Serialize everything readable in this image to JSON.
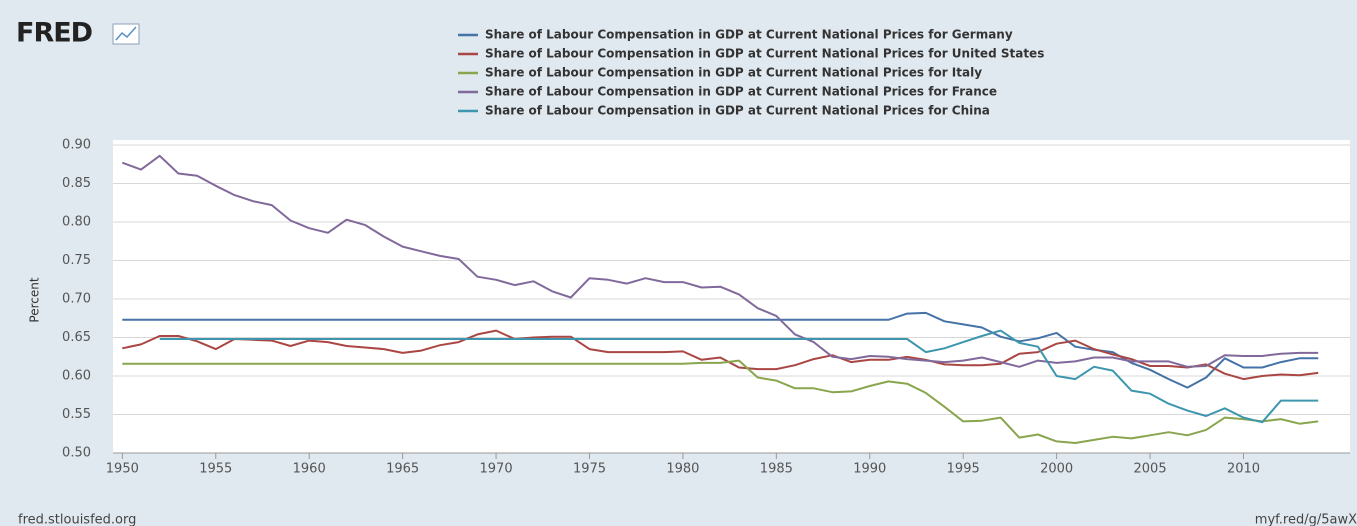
{
  "chart_data": {
    "type": "line",
    "logo": "FRED",
    "y_label": "Percent",
    "source": "fred.stlouisfed.org",
    "short_url": "myf.red/g/5awX",
    "legend_position": "top",
    "grid": true,
    "x": [
      1950,
      1951,
      1952,
      1953,
      1954,
      1955,
      1956,
      1957,
      1958,
      1959,
      1960,
      1961,
      1962,
      1963,
      1964,
      1965,
      1966,
      1967,
      1968,
      1969,
      1970,
      1971,
      1972,
      1973,
      1974,
      1975,
      1976,
      1977,
      1978,
      1979,
      1980,
      1981,
      1982,
      1983,
      1984,
      1985,
      1986,
      1987,
      1988,
      1989,
      1990,
      1991,
      1992,
      1993,
      1994,
      1995,
      1996,
      1997,
      1998,
      1999,
      2000,
      2001,
      2002,
      2003,
      2004,
      2005,
      2006,
      2007,
      2008,
      2009,
      2010,
      2011,
      2012,
      2013,
      2014
    ],
    "xlim": [
      1949.5,
      2015.7
    ],
    "xticks": [
      1950,
      1955,
      1960,
      1965,
      1970,
      1975,
      1980,
      1985,
      1990,
      1995,
      2000,
      2005,
      2010
    ],
    "ylim": [
      0.5,
      0.9
    ],
    "yticks": [
      {
        "value": 0.5,
        "label": "0.50"
      },
      0.55,
      {
        "value": 0.6,
        "label": "0.60"
      },
      0.65,
      {
        "value": 0.7,
        "label": "0.70"
      },
      0.75,
      {
        "value": 0.8,
        "label": "0.80"
      },
      0.85,
      {
        "value": 0.9,
        "label": "0.90"
      }
    ],
    "series": [
      {
        "name": "Share of Labour Compensation in GDP at Current National Prices for Germany",
        "color": "#4572a7",
        "values": [
          0.673,
          0.673,
          0.673,
          0.673,
          0.673,
          0.673,
          0.673,
          0.673,
          0.673,
          0.673,
          0.673,
          0.673,
          0.673,
          0.673,
          0.673,
          0.673,
          0.673,
          0.673,
          0.673,
          0.673,
          0.673,
          0.673,
          0.673,
          0.673,
          0.673,
          0.673,
          0.673,
          0.673,
          0.673,
          0.673,
          0.673,
          0.673,
          0.673,
          0.673,
          0.673,
          0.673,
          0.673,
          0.673,
          0.673,
          0.673,
          0.673,
          0.673,
          0.681,
          0.682,
          0.671,
          0.667,
          0.663,
          0.651,
          0.645,
          0.649,
          0.656,
          0.638,
          0.634,
          0.631,
          0.617,
          0.608,
          0.596,
          0.585,
          0.598,
          0.623,
          0.611,
          0.611,
          0.618,
          0.623,
          0.623
        ]
      },
      {
        "name": "Share of Labour Compensation in GDP at Current National Prices for United States",
        "color": "#aa4643",
        "values": [
          0.636,
          0.641,
          0.652,
          0.652,
          0.645,
          0.635,
          0.648,
          0.647,
          0.646,
          0.639,
          0.646,
          0.644,
          0.639,
          0.637,
          0.635,
          0.63,
          0.633,
          0.64,
          0.644,
          0.654,
          0.659,
          0.648,
          0.65,
          0.651,
          0.651,
          0.635,
          0.631,
          0.631,
          0.631,
          0.631,
          0.632,
          0.621,
          0.624,
          0.611,
          0.609,
          0.609,
          0.614,
          0.622,
          0.627,
          0.618,
          0.621,
          0.621,
          0.625,
          0.621,
          0.615,
          0.614,
          0.614,
          0.616,
          0.629,
          0.631,
          0.642,
          0.646,
          0.635,
          0.628,
          0.622,
          0.613,
          0.613,
          0.611,
          0.615,
          0.603,
          0.596,
          0.6,
          0.602,
          0.601,
          0.604
        ]
      },
      {
        "name": "Share of Labour Compensation in GDP at Current National Prices for Italy",
        "color": "#89a54e",
        "values": [
          0.616,
          0.616,
          0.616,
          0.616,
          0.616,
          0.616,
          0.616,
          0.616,
          0.616,
          0.616,
          0.616,
          0.616,
          0.616,
          0.616,
          0.616,
          0.616,
          0.616,
          0.616,
          0.616,
          0.616,
          0.616,
          0.616,
          0.616,
          0.616,
          0.616,
          0.616,
          0.616,
          0.616,
          0.616,
          0.616,
          0.616,
          0.617,
          0.617,
          0.62,
          0.598,
          0.594,
          0.584,
          0.584,
          0.579,
          0.58,
          0.587,
          0.593,
          0.59,
          0.578,
          0.56,
          0.541,
          0.542,
          0.546,
          0.52,
          0.524,
          0.515,
          0.513,
          0.517,
          0.521,
          0.519,
          0.523,
          0.527,
          0.523,
          0.53,
          0.546,
          0.544,
          0.541,
          0.544,
          0.538,
          0.541
        ]
      },
      {
        "name": "Share of Labour Compensation in GDP at Current National Prices for France",
        "color": "#80699b",
        "values": [
          0.877,
          0.868,
          0.886,
          0.863,
          0.86,
          0.847,
          0.835,
          0.827,
          0.822,
          0.802,
          0.792,
          0.786,
          0.803,
          0.796,
          0.781,
          0.768,
          0.762,
          0.756,
          0.752,
          0.729,
          0.725,
          0.718,
          0.723,
          0.71,
          0.702,
          0.727,
          0.725,
          0.72,
          0.727,
          0.722,
          0.722,
          0.715,
          0.716,
          0.706,
          0.688,
          0.678,
          0.654,
          0.644,
          0.625,
          0.622,
          0.626,
          0.625,
          0.622,
          0.62,
          0.618,
          0.62,
          0.624,
          0.618,
          0.612,
          0.62,
          0.617,
          0.619,
          0.624,
          0.624,
          0.619,
          0.619,
          0.619,
          0.612,
          0.613,
          0.627,
          0.626,
          0.626,
          0.629,
          0.63,
          0.63
        ]
      },
      {
        "name": "Share of Labour Compensation in GDP at Current National Prices for China",
        "color": "#3d96ae",
        "values": [
          null,
          null,
          0.648,
          0.648,
          0.648,
          0.648,
          0.648,
          0.648,
          0.648,
          0.648,
          0.648,
          0.648,
          0.648,
          0.648,
          0.648,
          0.648,
          0.648,
          0.648,
          0.648,
          0.648,
          0.648,
          0.648,
          0.648,
          0.648,
          0.648,
          0.648,
          0.648,
          0.648,
          0.648,
          0.648,
          0.648,
          0.648,
          0.648,
          0.648,
          0.648,
          0.648,
          0.648,
          0.648,
          0.648,
          0.648,
          0.648,
          0.648,
          0.648,
          0.631,
          0.636,
          0.644,
          0.652,
          0.659,
          0.643,
          0.638,
          0.6,
          0.596,
          0.612,
          0.607,
          0.581,
          0.577,
          0.564,
          0.555,
          0.548,
          0.558,
          0.546,
          0.54,
          0.568,
          0.568,
          0.568
        ]
      }
    ]
  }
}
